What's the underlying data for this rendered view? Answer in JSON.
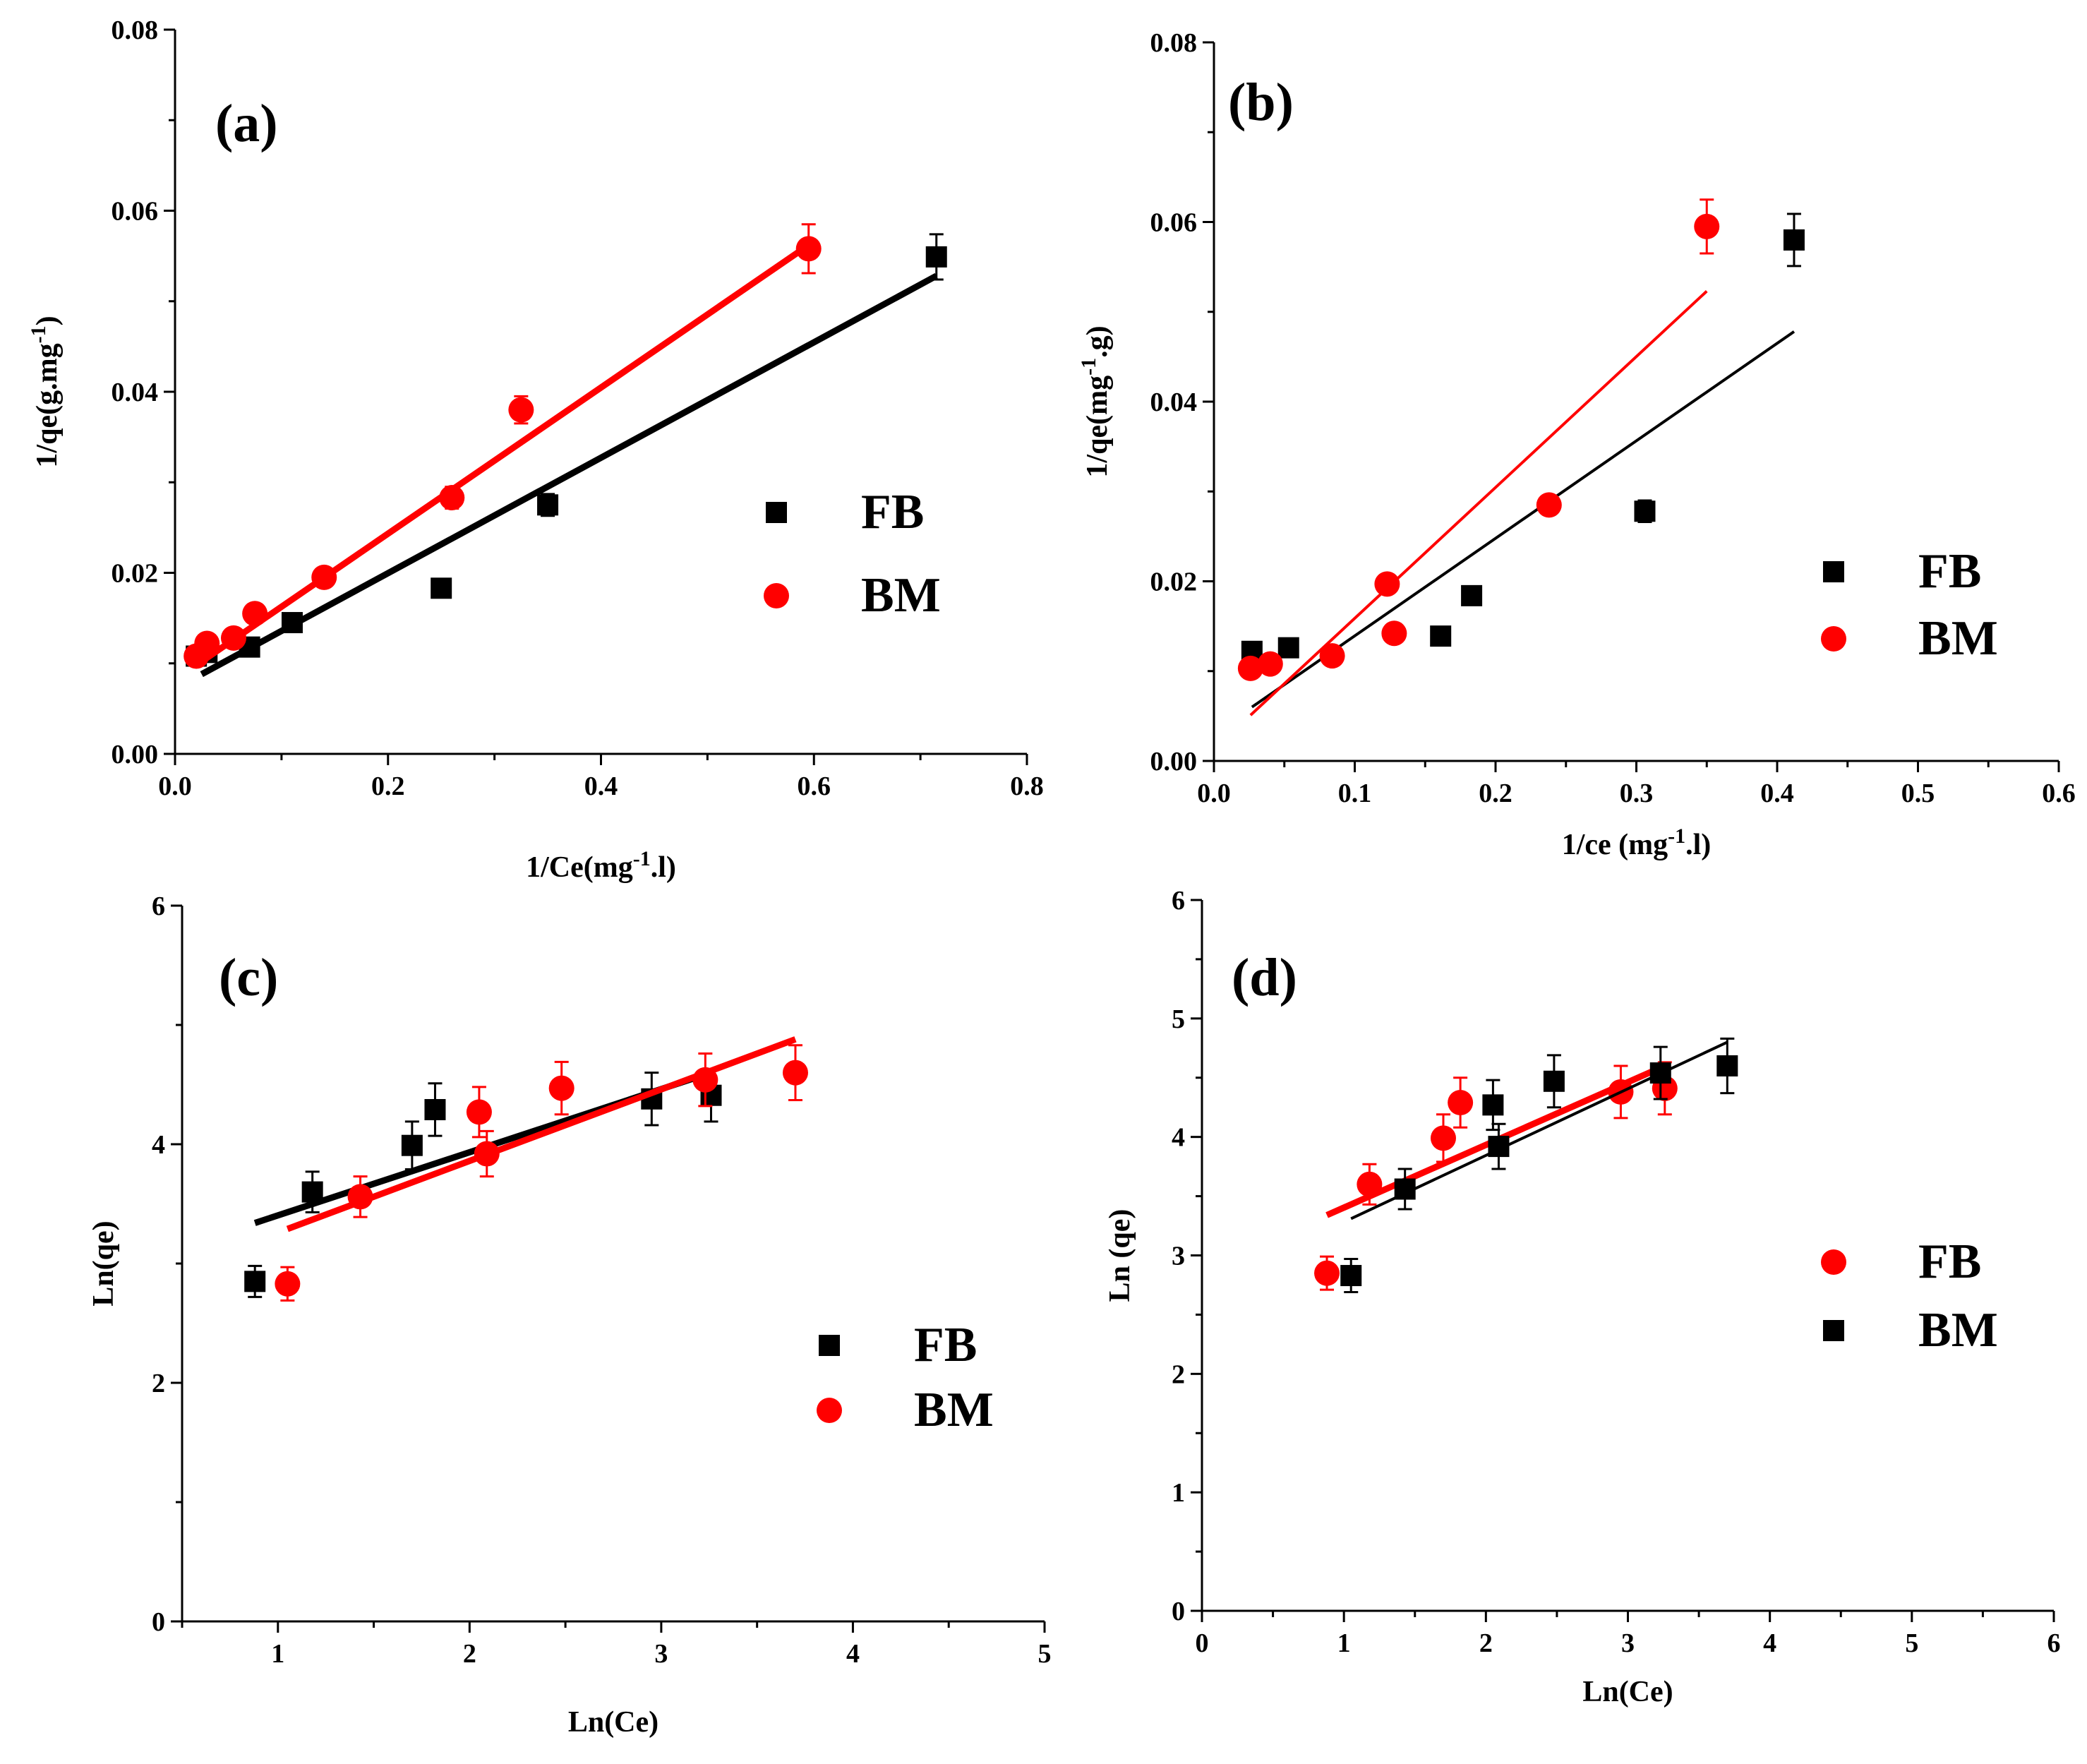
{
  "colors": {
    "FB_series": "#000000",
    "BM_series": "#ff0000",
    "axis": "#000000"
  },
  "chart_data": [
    {
      "type": "scatter",
      "panel_label": "(a)",
      "xlabel": "1/Ce(mg-1.l)",
      "ylabel": "1/qe(g.mg-1)",
      "xlim": [
        0,
        0.8
      ],
      "ylim": [
        0,
        0.08
      ],
      "x_ticks": [
        0.0,
        0.2,
        0.4,
        0.6,
        0.8
      ],
      "x_tick_labels": [
        "0.0",
        "0.2",
        "0.4",
        "0.6",
        "0.8"
      ],
      "y_ticks": [
        0.0,
        0.02,
        0.04,
        0.06,
        0.08
      ],
      "y_tick_labels": [
        "0.00",
        "0.02",
        "0.04",
        "0.06",
        "0.08"
      ],
      "legend_position": "right",
      "series": [
        {
          "name": "FB",
          "marker": "square",
          "color": "#000000",
          "points": [
            {
              "x": 0.02,
              "y": 0.0108,
              "err": 0.001
            },
            {
              "x": 0.03,
              "y": 0.0112,
              "err": 0.001
            },
            {
              "x": 0.07,
              "y": 0.0118,
              "err": 0.001
            },
            {
              "x": 0.11,
              "y": 0.0145,
              "err": 0.001
            },
            {
              "x": 0.25,
              "y": 0.0183,
              "err": 0.001
            },
            {
              "x": 0.35,
              "y": 0.0275,
              "err": 0.0012
            },
            {
              "x": 0.715,
              "y": 0.0549,
              "err": 0.0025
            }
          ],
          "fit_line": [
            [
              0.025,
              0.0088
            ],
            [
              0.715,
              0.0528
            ]
          ]
        },
        {
          "name": "BM",
          "marker": "circle",
          "color": "#ff0000",
          "points": [
            {
              "x": 0.02,
              "y": 0.0108,
              "err": 0.001
            },
            {
              "x": 0.03,
              "y": 0.0122,
              "err": 0.001
            },
            {
              "x": 0.055,
              "y": 0.0128,
              "err": 0.001
            },
            {
              "x": 0.075,
              "y": 0.0155,
              "err": 0.001
            },
            {
              "x": 0.14,
              "y": 0.0195,
              "err": 0.001
            },
            {
              "x": 0.26,
              "y": 0.0283,
              "err": 0.0012
            },
            {
              "x": 0.325,
              "y": 0.038,
              "err": 0.0015
            },
            {
              "x": 0.595,
              "y": 0.0558,
              "err": 0.0027
            }
          ],
          "fit_line": [
            [
              0.02,
              0.0098
            ],
            [
              0.595,
              0.0562
            ]
          ]
        }
      ]
    },
    {
      "type": "scatter",
      "panel_label": "(b)",
      "xlabel": "1/ce (mg-1.l)",
      "ylabel": "1/qe(mg-1.g)",
      "xlim": [
        0,
        0.6
      ],
      "ylim": [
        0,
        0.08
      ],
      "x_ticks": [
        0.0,
        0.1,
        0.2,
        0.3,
        0.4,
        0.5,
        0.6
      ],
      "x_tick_labels": [
        "0.0",
        "0.1",
        "0.2",
        "0.3",
        "0.4",
        "0.5",
        "0.6"
      ],
      "y_ticks": [
        0.0,
        0.02,
        0.04,
        0.06,
        0.08
      ],
      "y_tick_labels": [
        "0.00",
        "0.02",
        "0.04",
        "0.06",
        "0.08"
      ],
      "legend_position": "right",
      "series": [
        {
          "name": "FB",
          "marker": "square",
          "color": "#000000",
          "points": [
            {
              "x": 0.027,
              "y": 0.0122,
              "err": 0.0008
            },
            {
              "x": 0.053,
              "y": 0.0126,
              "err": 0.0008
            },
            {
              "x": 0.161,
              "y": 0.0139,
              "err": 0.0008
            },
            {
              "x": 0.183,
              "y": 0.0184,
              "err": 0.0008
            },
            {
              "x": 0.306,
              "y": 0.0278,
              "err": 0.0012
            },
            {
              "x": 0.412,
              "y": 0.058,
              "err": 0.0029
            }
          ],
          "fit_line": [
            [
              0.027,
              0.006
            ],
            [
              0.412,
              0.0478
            ]
          ]
        },
        {
          "name": "BM",
          "marker": "circle",
          "color": "#ff0000",
          "points": [
            {
              "x": 0.026,
              "y": 0.0103,
              "err": 0.0008
            },
            {
              "x": 0.04,
              "y": 0.0108,
              "err": 0.0008
            },
            {
              "x": 0.084,
              "y": 0.0117,
              "err": 0.0008
            },
            {
              "x": 0.123,
              "y": 0.0197,
              "err": 0.0008
            },
            {
              "x": 0.128,
              "y": 0.0142,
              "err": 0.0008
            },
            {
              "x": 0.238,
              "y": 0.0285,
              "err": 0.0008
            },
            {
              "x": 0.35,
              "y": 0.0595,
              "err": 0.003
            }
          ],
          "fit_line": [
            [
              0.026,
              0.0051
            ],
            [
              0.35,
              0.0523
            ]
          ]
        }
      ]
    },
    {
      "type": "scatter",
      "panel_label": "(c)",
      "xlabel": "Ln(Ce)",
      "ylabel": "Ln(qe)",
      "xlim": [
        0.5,
        5
      ],
      "ylim": [
        0,
        6
      ],
      "x_ticks": [
        1,
        2,
        3,
        4,
        5
      ],
      "x_tick_labels": [
        "1",
        "2",
        "3",
        "4",
        "5"
      ],
      "y_ticks": [
        0,
        2,
        4,
        6
      ],
      "y_tick_labels": [
        "0",
        "2",
        "4",
        "6"
      ],
      "legend_position": "bottom-right",
      "series": [
        {
          "name": "FB",
          "marker": "square",
          "color": "#000000",
          "points": [
            {
              "x": 0.88,
              "y": 2.85,
              "err": 0.13
            },
            {
              "x": 1.18,
              "y": 3.6,
              "err": 0.17
            },
            {
              "x": 1.7,
              "y": 3.99,
              "err": 0.2
            },
            {
              "x": 1.82,
              "y": 4.29,
              "err": 0.22
            },
            {
              "x": 2.95,
              "y": 4.38,
              "err": 0.22
            },
            {
              "x": 3.26,
              "y": 4.41,
              "err": 0.22
            }
          ],
          "fit_line": [
            [
              0.88,
              3.34
            ],
            [
              3.26,
              4.6
            ]
          ]
        },
        {
          "name": "BM",
          "marker": "circle",
          "color": "#ff0000",
          "points": [
            {
              "x": 1.05,
              "y": 2.83,
              "err": 0.14
            },
            {
              "x": 1.43,
              "y": 3.56,
              "err": 0.17
            },
            {
              "x": 2.05,
              "y": 4.27,
              "err": 0.21
            },
            {
              "x": 2.09,
              "y": 3.92,
              "err": 0.19
            },
            {
              "x": 2.48,
              "y": 4.47,
              "err": 0.22
            },
            {
              "x": 3.23,
              "y": 4.54,
              "err": 0.22
            },
            {
              "x": 3.7,
              "y": 4.6,
              "err": 0.23
            }
          ],
          "fit_line": [
            [
              1.05,
              3.29
            ],
            [
              3.7,
              4.88
            ]
          ]
        }
      ]
    },
    {
      "type": "scatter",
      "panel_label": "(d)",
      "xlabel": "Ln(Ce)",
      "ylabel": "Ln (qe)",
      "xlim": [
        0,
        6
      ],
      "ylim": [
        0,
        6
      ],
      "x_ticks": [
        0,
        1,
        2,
        3,
        4,
        5,
        6
      ],
      "x_tick_labels": [
        "0",
        "1",
        "2",
        "3",
        "4",
        "5",
        "6"
      ],
      "y_ticks": [
        0,
        1,
        2,
        3,
        4,
        5,
        6
      ],
      "y_tick_labels": [
        "0",
        "1",
        "2",
        "3",
        "4",
        "5",
        "6"
      ],
      "legend_position": "bottom-right",
      "series": [
        {
          "name": "FB",
          "marker": "circle",
          "color": "#ff0000",
          "points": [
            {
              "x": 0.88,
              "y": 2.85,
              "err": 0.14
            },
            {
              "x": 1.18,
              "y": 3.6,
              "err": 0.17
            },
            {
              "x": 1.7,
              "y": 3.99,
              "err": 0.2
            },
            {
              "x": 1.82,
              "y": 4.29,
              "err": 0.21
            },
            {
              "x": 2.95,
              "y": 4.38,
              "err": 0.22
            },
            {
              "x": 3.26,
              "y": 4.41,
              "err": 0.22
            }
          ],
          "fit_line": [
            [
              0.88,
              3.34
            ],
            [
              3.26,
              4.6
            ]
          ]
        },
        {
          "name": "BM",
          "marker": "square",
          "color": "#000000",
          "points": [
            {
              "x": 1.05,
              "y": 2.83,
              "err": 0.14
            },
            {
              "x": 1.43,
              "y": 3.56,
              "err": 0.17
            },
            {
              "x": 2.05,
              "y": 4.27,
              "err": 0.21
            },
            {
              "x": 2.09,
              "y": 3.92,
              "err": 0.19
            },
            {
              "x": 2.48,
              "y": 4.47,
              "err": 0.22
            },
            {
              "x": 3.23,
              "y": 4.54,
              "err": 0.22
            },
            {
              "x": 3.7,
              "y": 4.6,
              "err": 0.23
            }
          ],
          "fit_line": [
            [
              1.05,
              3.31
            ],
            [
              3.7,
              4.8
            ]
          ]
        }
      ]
    }
  ]
}
